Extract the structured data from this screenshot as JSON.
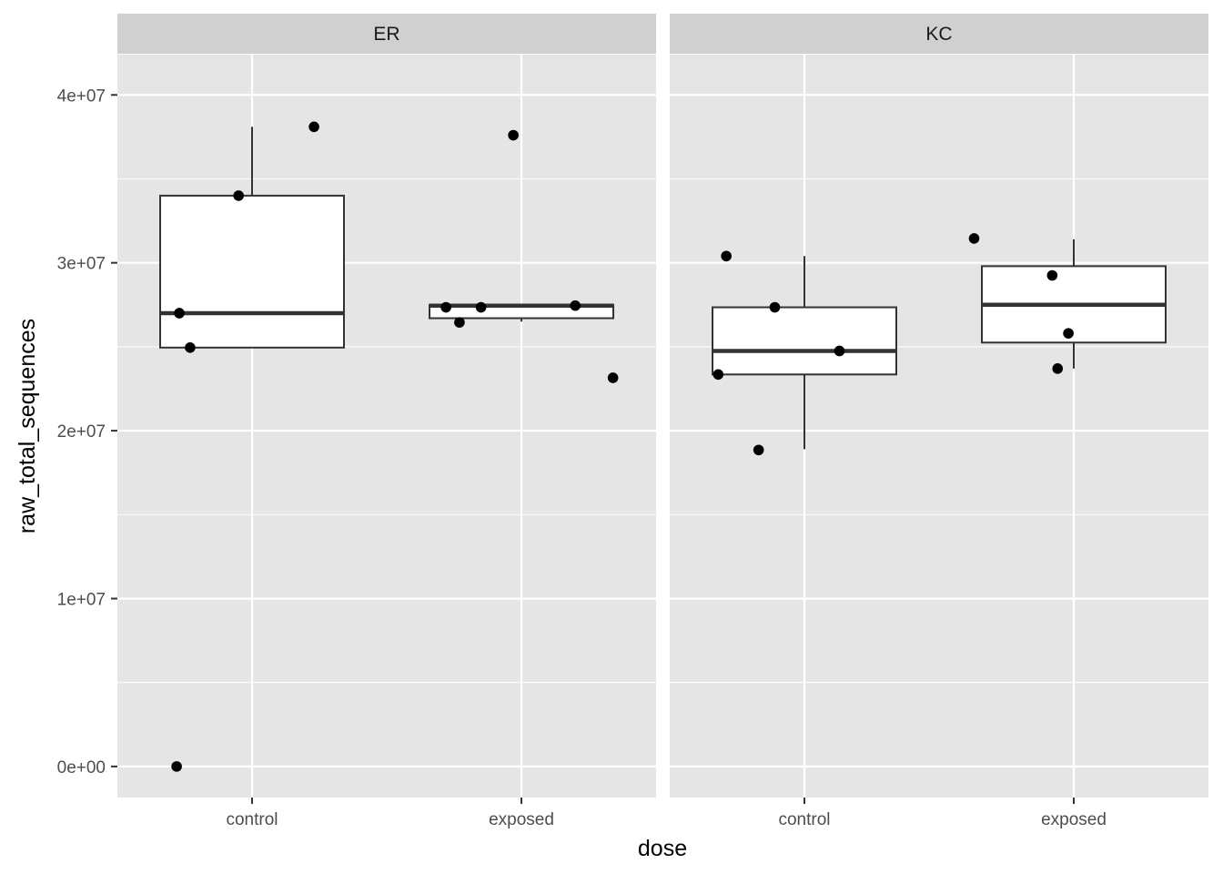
{
  "chart_data": {
    "type": "boxplot",
    "xlabel": "dose",
    "ylabel": "raw_total_sequences",
    "ylim": [
      -1850000,
      42400000
    ],
    "y_ticks": [
      {
        "value": 0,
        "label": "0e+00"
      },
      {
        "value": 10000000,
        "label": "1e+07"
      },
      {
        "value": 20000000,
        "label": "2e+07"
      },
      {
        "value": 30000000,
        "label": "3e+07"
      },
      {
        "value": 40000000,
        "label": "4e+07"
      }
    ],
    "y_minor_ticks": [
      5000000,
      15000000,
      25000000,
      35000000
    ],
    "categories": [
      "control",
      "exposed"
    ],
    "grid": true,
    "legend": "none",
    "colors": {
      "panel": "#e5e5e5",
      "strip": "#d0d0d0",
      "grid": "#ffffff",
      "box_fill": "#ffffff",
      "box_line": "#333333",
      "points": "#000000"
    },
    "facets": [
      {
        "label": "ER",
        "groups": [
          {
            "category": "control",
            "box": {
              "lower_whisker": 24950000,
              "q1": 24950000,
              "median": 27000000,
              "q3": 34000000,
              "upper_whisker": 38100000
            },
            "points": [
              {
                "jitter": -0.28,
                "y": 0
              },
              {
                "jitter": -0.27,
                "y": 27000000
              },
              {
                "jitter": -0.23,
                "y": 24950000
              },
              {
                "jitter": -0.05,
                "y": 34000000
              },
              {
                "jitter": 0.23,
                "y": 38100000
              }
            ]
          },
          {
            "category": "exposed",
            "box": {
              "lower_whisker": 26500000,
              "q1": 26700000,
              "median": 27450000,
              "q3": 27500000,
              "upper_whisker": 27500000
            },
            "points": [
              {
                "jitter": -0.28,
                "y": 27350000
              },
              {
                "jitter": -0.23,
                "y": 26450000
              },
              {
                "jitter": -0.15,
                "y": 27350000
              },
              {
                "jitter": -0.03,
                "y": 37600000
              },
              {
                "jitter": 0.2,
                "y": 27450000
              },
              {
                "jitter": 0.34,
                "y": 23150000
              }
            ]
          }
        ]
      },
      {
        "label": "KC",
        "groups": [
          {
            "category": "control",
            "box": {
              "lower_whisker": 18900000,
              "q1": 23350000,
              "median": 24750000,
              "q3": 27350000,
              "upper_whisker": 30400000
            },
            "points": [
              {
                "jitter": -0.32,
                "y": 23350000
              },
              {
                "jitter": -0.29,
                "y": 30400000
              },
              {
                "jitter": -0.17,
                "y": 18850000
              },
              {
                "jitter": -0.11,
                "y": 27350000
              },
              {
                "jitter": 0.13,
                "y": 24750000
              }
            ]
          },
          {
            "category": "exposed",
            "box": {
              "lower_whisker": 23700000,
              "q1": 25250000,
              "median": 27500000,
              "q3": 29800000,
              "upper_whisker": 31400000
            },
            "points": [
              {
                "jitter": -0.37,
                "y": 31450000
              },
              {
                "jitter": -0.08,
                "y": 29250000
              },
              {
                "jitter": -0.06,
                "y": 23700000
              },
              {
                "jitter": -0.02,
                "y": 25800000
              }
            ]
          }
        ]
      }
    ]
  }
}
